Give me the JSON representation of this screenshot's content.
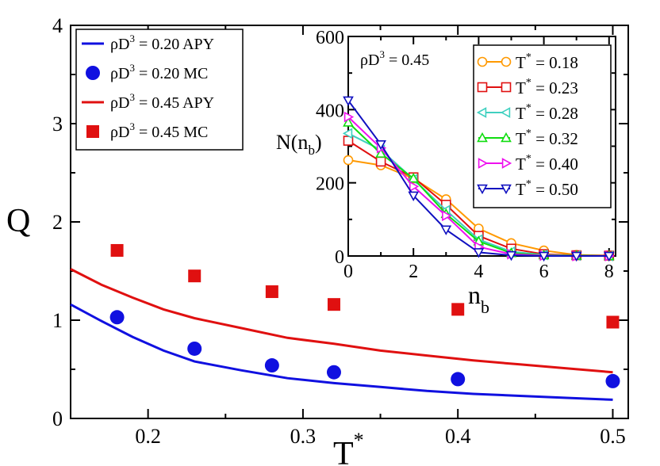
{
  "chart_data": [
    {
      "type": "line",
      "title": "",
      "xlabel": "T",
      "xlabel_sup": "*",
      "ylabel": "Q",
      "xlim": [
        0.15,
        0.51
      ],
      "ylim": [
        0,
        4
      ],
      "xticks": [
        0.2,
        0.3,
        0.4,
        0.5
      ],
      "xtick_labels": [
        "0.2",
        "0.3",
        "0.4",
        "0.5"
      ],
      "yticks": [
        0,
        1,
        2,
        3,
        4
      ],
      "ytick_labels": [
        "0",
        "1",
        "2",
        "3",
        "4"
      ],
      "grid": false,
      "legend_placement": "top-left",
      "legend": [
        {
          "text": "ρD",
          "sup": "3",
          "rest": " = 0.20 APY",
          "marker": "line",
          "color": "#1010e0"
        },
        {
          "text": "ρD",
          "sup": "3",
          "rest": " = 0.20 MC",
          "marker": "circle",
          "color": "#1010e0"
        },
        {
          "text": "ρD",
          "sup": "3",
          "rest": " = 0.45 APY",
          "marker": "line",
          "color": "#e01010"
        },
        {
          "text": "ρD",
          "sup": "3",
          "rest": " = 0.45 MC",
          "marker": "square",
          "color": "#e01010"
        }
      ],
      "series": [
        {
          "kind": "line",
          "color": "#1010e0",
          "x": [
            0.15,
            0.17,
            0.19,
            0.21,
            0.23,
            0.26,
            0.29,
            0.32,
            0.35,
            0.38,
            0.41,
            0.44,
            0.47,
            0.5
          ],
          "y": [
            1.16,
            0.99,
            0.83,
            0.69,
            0.58,
            0.49,
            0.41,
            0.36,
            0.32,
            0.28,
            0.25,
            0.23,
            0.21,
            0.19
          ]
        },
        {
          "kind": "points",
          "marker": "circle",
          "color": "#1010e0",
          "x": [
            0.18,
            0.23,
            0.28,
            0.32,
            0.4,
            0.5
          ],
          "y": [
            1.03,
            0.71,
            0.54,
            0.47,
            0.4,
            0.38
          ]
        },
        {
          "kind": "line",
          "color": "#e01010",
          "x": [
            0.15,
            0.17,
            0.19,
            0.21,
            0.23,
            0.26,
            0.29,
            0.32,
            0.35,
            0.38,
            0.41,
            0.44,
            0.47,
            0.5
          ],
          "y": [
            1.52,
            1.36,
            1.23,
            1.11,
            1.02,
            0.92,
            0.82,
            0.76,
            0.69,
            0.64,
            0.59,
            0.55,
            0.51,
            0.47
          ]
        },
        {
          "kind": "points",
          "marker": "square",
          "color": "#e01010",
          "x": [
            0.18,
            0.23,
            0.28,
            0.32,
            0.4,
            0.5
          ],
          "y": [
            1.71,
            1.45,
            1.29,
            1.16,
            1.11,
            0.98
          ]
        }
      ]
    },
    {
      "type": "line",
      "title": "",
      "annotation": {
        "text": "ρD",
        "sup": "3",
        "rest": " = 0.45"
      },
      "xlabel": "n",
      "xlabel_sub": "b",
      "ylabel": "N(n",
      "ylabel_sub": "b",
      "ylabel_end": ")",
      "xlim": [
        0,
        8.2
      ],
      "ylim": [
        0,
        600
      ],
      "xticks": [
        0,
        2,
        4,
        6,
        8
      ],
      "xtick_labels": [
        "0",
        "2",
        "4",
        "6",
        "8"
      ],
      "yticks": [
        0,
        200,
        400,
        600
      ],
      "ytick_labels": [
        "0",
        "200",
        "400",
        "600"
      ],
      "grid": false,
      "legend_placement": "top-right",
      "x": [
        0,
        1,
        2,
        3,
        4,
        5,
        6,
        7,
        8
      ],
      "series": [
        {
          "name": "T",
          "sup": "*",
          "rest": " = 0.18",
          "color": "#ff9900",
          "marker": "circle",
          "values": [
            262,
            248,
            212,
            155,
            75,
            35,
            15,
            3,
            1
          ]
        },
        {
          "name": "T",
          "sup": "*",
          "rest": " = 0.23",
          "color": "#e01010",
          "marker": "square",
          "values": [
            315,
            258,
            215,
            140,
            55,
            20,
            5,
            2,
            1
          ]
        },
        {
          "name": "T",
          "sup": "*",
          "rest": " = 0.28",
          "color": "#40d0c0",
          "marker": "tri-left",
          "values": [
            335,
            290,
            210,
            125,
            45,
            12,
            3,
            1,
            0
          ]
        },
        {
          "name": "T",
          "sup": "*",
          "rest": " = 0.32",
          "color": "#10dd10",
          "marker": "tri-up",
          "values": [
            365,
            280,
            212,
            115,
            40,
            8,
            2,
            1,
            0
          ]
        },
        {
          "name": "T",
          "sup": "*",
          "rest": " = 0.40",
          "color": "#ee10ee",
          "marker": "tri-right",
          "values": [
            380,
            295,
            190,
            110,
            25,
            5,
            1,
            0,
            0
          ]
        },
        {
          "name": "T",
          "sup": "*",
          "rest": " = 0.50",
          "color": "#1010c0",
          "marker": "tri-down",
          "values": [
            425,
            305,
            165,
            72,
            10,
            2,
            0,
            0,
            0
          ]
        }
      ]
    }
  ]
}
